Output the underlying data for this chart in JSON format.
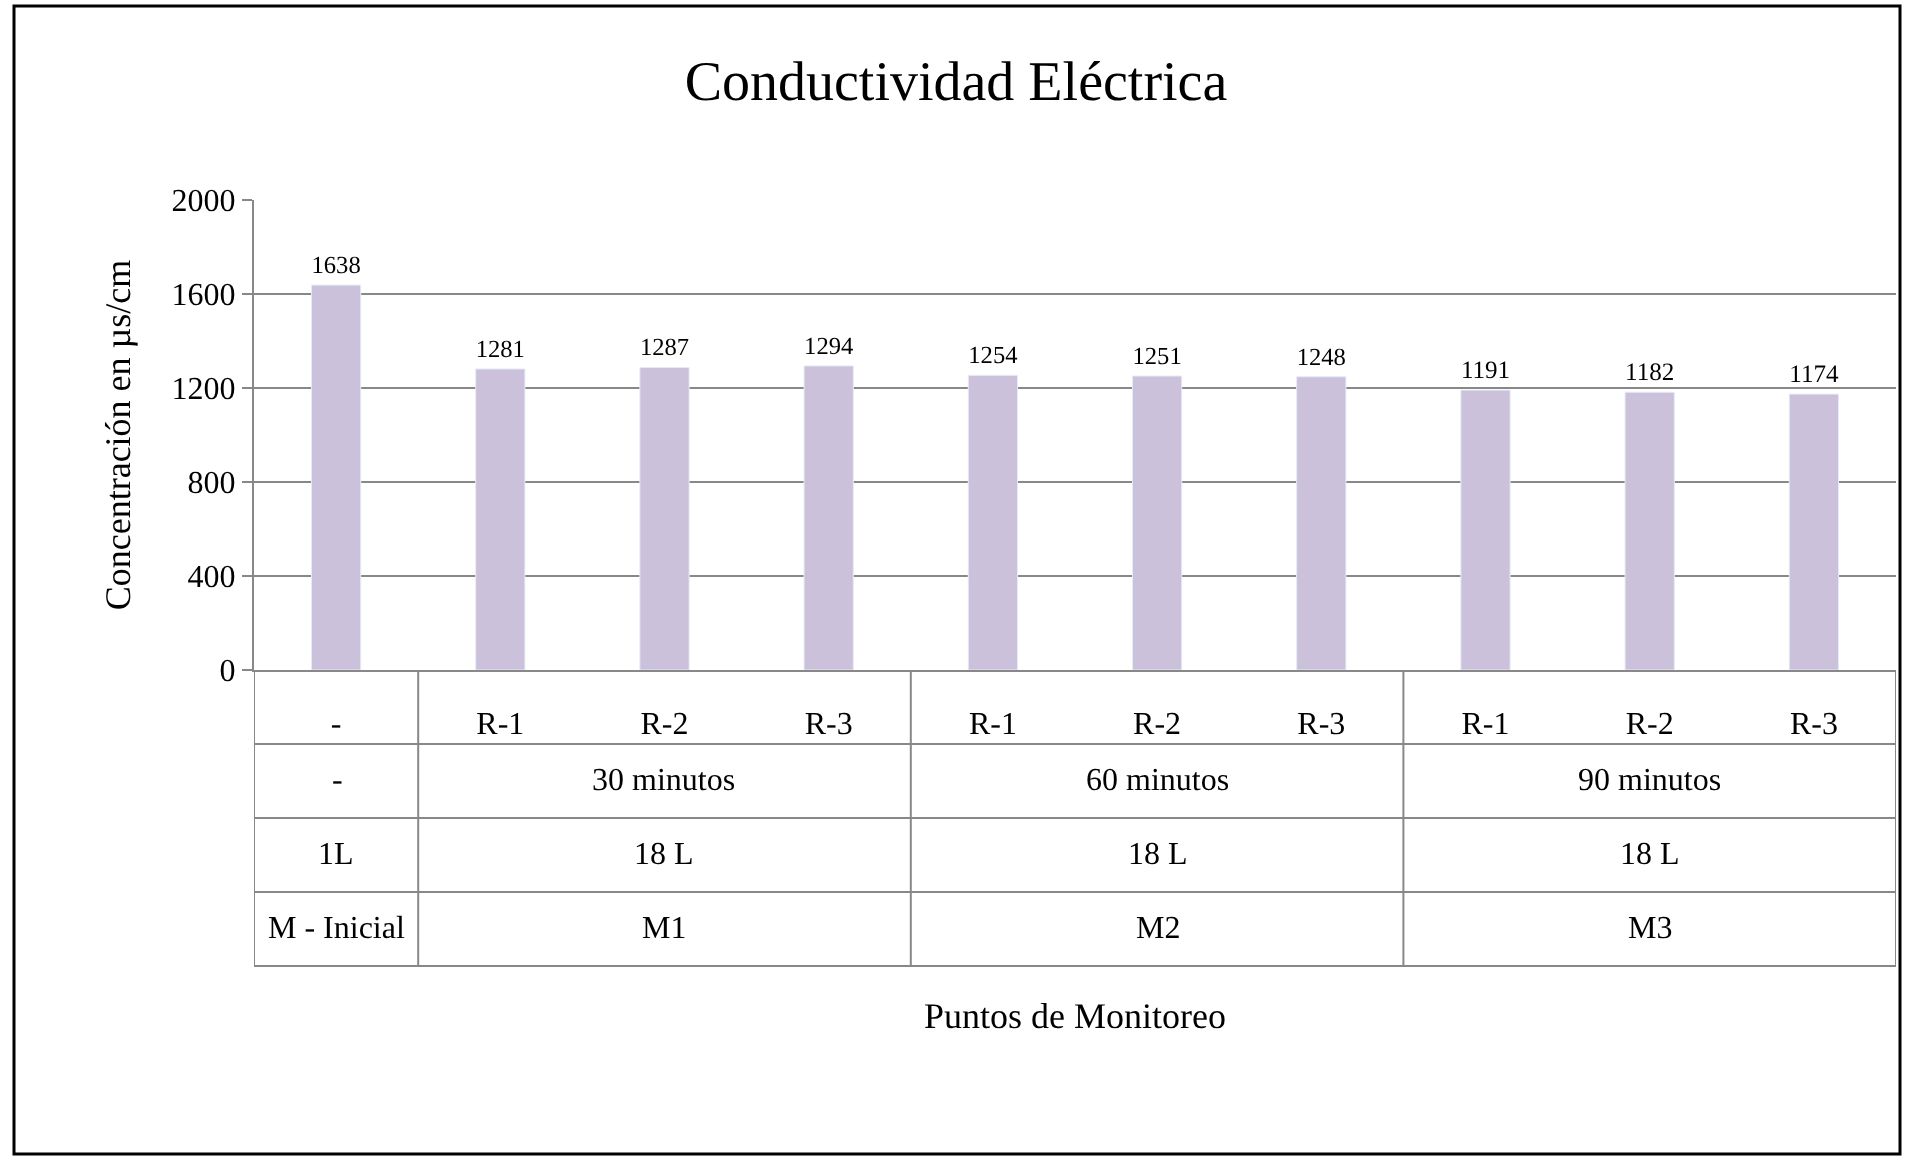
{
  "chart_data": {
    "type": "bar",
    "title": "Conductividad Eléctrica",
    "ylabel": "Concentración en µs/cm",
    "categories": [
      "-",
      "R-1",
      "R-2",
      "R-3",
      "R-1",
      "R-2",
      "R-3",
      "R-1",
      "R-2",
      "R-3"
    ],
    "values": [
      1638,
      1281,
      1287,
      1294,
      1254,
      1251,
      1248,
      1191,
      1182,
      1174
    ],
    "color": "#ccc1da",
    "data_labels": true,
    "ylim": [
      0,
      2000
    ],
    "yticks": [
      0,
      400,
      800,
      1200,
      1600,
      2000
    ],
    "grid": "y",
    "legend": false,
    "annotations": [
      "-",
      "30 minutos",
      "60 minutos",
      "90 minutos",
      "1L",
      "18 L",
      "18 L",
      "18 L",
      "M - Inicial",
      "M1",
      "M2",
      "M3",
      "Puntos de Monitoreo"
    ]
  }
}
